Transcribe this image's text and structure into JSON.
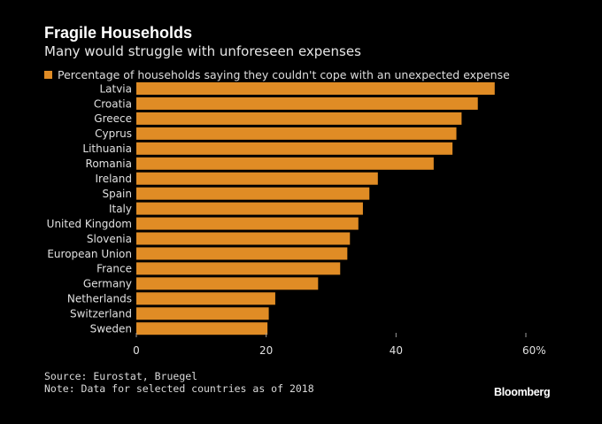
{
  "header": {
    "title": "Fragile Households",
    "subtitle": "Many would struggle with unforeseen expenses"
  },
  "colors": {
    "bar": "#e08c25",
    "background": "#000000",
    "text": "#e0e0e0"
  },
  "chart_data": {
    "type": "bar",
    "orientation": "horizontal",
    "title": "Fragile Households",
    "subtitle": "Many would struggle with unforeseen expenses",
    "xlabel": "",
    "ylabel": "",
    "categories": [
      "Latvia",
      "Croatia",
      "Greece",
      "Cyprus",
      "Lithuania",
      "Romania",
      "Ireland",
      "Spain",
      "Italy",
      "United Kingdom",
      "Slovenia",
      "European Union",
      "France",
      "Germany",
      "Netherlands",
      "Switzerland",
      "Sweden"
    ],
    "series": [
      {
        "name": "Percentage of households saying they couldn't cope with an unexpected expense",
        "values": [
          55.2,
          52.6,
          50.1,
          49.3,
          48.7,
          45.8,
          37.2,
          35.9,
          34.9,
          34.2,
          32.9,
          32.5,
          31.4,
          28.0,
          21.4,
          20.4,
          20.2
        ]
      }
    ],
    "xlim": [
      0,
      60
    ],
    "xticks": [
      0,
      20,
      40,
      60
    ],
    "xtick_labels": [
      "0",
      "20",
      "40",
      "60%"
    ],
    "grid": false,
    "legend_position": "top-left"
  },
  "footer": {
    "source": "Source: Eurostat, Bruegel",
    "note": "Note: Data for selected countries as of 2018",
    "brand": "Bloomberg"
  }
}
